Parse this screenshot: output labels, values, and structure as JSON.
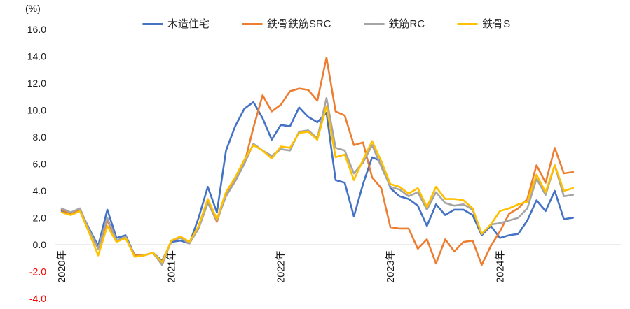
{
  "chart": {
    "unit_label": "(%)",
    "legend": [
      {
        "label": "木造住宅",
        "color": "#4472C4"
      },
      {
        "label": "鉄骨鉄筋SRC",
        "color": "#ED7D31"
      },
      {
        "label": "鉄筋RC",
        "color": "#A5A5A5"
      },
      {
        "label": "鉄骨S",
        "color": "#FFC000"
      }
    ],
    "y_axis": {
      "ticks": [
        {
          "label": "16.0",
          "value": 16
        },
        {
          "label": "14.0",
          "value": 14
        },
        {
          "label": "12.0",
          "value": 12
        },
        {
          "label": "10.0",
          "value": 10
        },
        {
          "label": "8.0",
          "value": 8
        },
        {
          "label": "6.0",
          "value": 6
        },
        {
          "label": "4.0",
          "value": 4
        },
        {
          "label": "2.0",
          "value": 2
        },
        {
          "label": "0.0",
          "value": 0
        },
        {
          "label": "-2.0",
          "value": -2
        },
        {
          "label": "-4.0",
          "value": -4
        }
      ],
      "tick_color": "#1a1a1a",
      "negative_tick_color": "#FF0000"
    },
    "x_axis": {
      "year_ticks": [
        {
          "label": "2020年",
          "month_index": 0
        },
        {
          "label": "2021年",
          "month_index": 12
        },
        {
          "label": "2022年",
          "month_index": 24
        },
        {
          "label": "2023年",
          "month_index": 36
        },
        {
          "label": "2024年",
          "month_index": 48
        }
      ],
      "tick_color": "#1a1a1a"
    },
    "zero_line_color": "#D9D9D9"
  },
  "chart_data": {
    "type": "line",
    "title": "",
    "xlabel": "",
    "ylabel": "(%)",
    "ylim": [
      -4,
      16
    ],
    "grid": "zero-line-only",
    "legend_position": "top",
    "x": [
      "2020-01",
      "2020-02",
      "2020-03",
      "2020-04",
      "2020-05",
      "2020-06",
      "2020-07",
      "2020-08",
      "2020-09",
      "2020-10",
      "2020-11",
      "2020-12",
      "2021-01",
      "2021-02",
      "2021-03",
      "2021-04",
      "2021-05",
      "2021-06",
      "2021-07",
      "2021-08",
      "2021-09",
      "2021-10",
      "2021-11",
      "2021-12",
      "2022-01",
      "2022-02",
      "2022-03",
      "2022-04",
      "2022-05",
      "2022-06",
      "2022-07",
      "2022-08",
      "2022-09",
      "2022-10",
      "2022-11",
      "2022-12",
      "2023-01",
      "2023-02",
      "2023-03",
      "2023-04",
      "2023-05",
      "2023-06",
      "2023-07",
      "2023-08",
      "2023-09",
      "2023-10",
      "2023-11",
      "2023-12",
      "2024-01",
      "2024-02",
      "2024-03",
      "2024-04",
      "2024-05",
      "2024-06",
      "2024-07",
      "2024-08",
      "2024-09"
    ],
    "series": [
      {
        "name": "木造住宅",
        "color": "#4472C4",
        "values": [
          2.5,
          2.4,
          2.6,
          1.2,
          -0.1,
          2.6,
          0.5,
          0.7,
          -0.8,
          -0.8,
          -0.6,
          -1.2,
          0.2,
          0.3,
          0.1,
          2.0,
          4.3,
          2.4,
          7.0,
          8.8,
          10.1,
          10.6,
          9.4,
          7.8,
          8.9,
          8.8,
          10.2,
          9.5,
          9.1,
          9.8,
          4.8,
          4.6,
          2.1,
          4.5,
          6.5,
          6.2,
          4.2,
          3.6,
          3.4,
          2.9,
          1.4,
          3.0,
          2.2,
          2.6,
          2.6,
          2.2,
          0.7,
          1.4,
          0.5,
          0.7,
          0.8,
          1.8,
          3.3,
          2.5,
          4.0,
          1.9,
          2.0
        ]
      },
      {
        "name": "鉄骨鉄筋SRC",
        "color": "#ED7D31",
        "values": [
          2.6,
          2.3,
          2.6,
          1.0,
          -0.3,
          1.8,
          0.3,
          0.5,
          -0.8,
          -0.8,
          -0.6,
          -1.5,
          0.3,
          0.5,
          0.1,
          1.3,
          3.2,
          1.7,
          3.8,
          4.8,
          6.0,
          8.7,
          11.1,
          9.9,
          10.4,
          11.4,
          11.6,
          11.5,
          10.7,
          13.9,
          9.9,
          9.6,
          7.4,
          7.6,
          5.0,
          4.2,
          1.3,
          1.2,
          1.2,
          -0.3,
          0.4,
          -1.4,
          0.4,
          -0.5,
          0.2,
          0.3,
          -1.5,
          -0.1,
          1.0,
          2.3,
          2.7,
          3.4,
          5.9,
          4.6,
          7.2,
          5.3,
          5.4
        ]
      },
      {
        "name": "鉄筋RC",
        "color": "#A5A5A5",
        "values": [
          2.7,
          2.4,
          2.7,
          1.1,
          -0.3,
          2.0,
          0.3,
          0.6,
          -0.9,
          -0.8,
          -0.6,
          -1.5,
          0.3,
          0.5,
          0.1,
          1.2,
          3.1,
          1.8,
          3.6,
          4.7,
          6.0,
          7.5,
          7.0,
          6.6,
          7.1,
          7.0,
          8.4,
          8.5,
          7.9,
          10.9,
          7.2,
          7.0,
          5.3,
          6.1,
          7.4,
          5.8,
          4.3,
          4.1,
          3.6,
          3.9,
          2.6,
          3.9,
          3.1,
          2.9,
          3.0,
          2.6,
          0.8,
          1.5,
          1.6,
          1.8,
          2.0,
          2.7,
          4.9,
          3.7,
          5.9,
          3.6,
          3.7
        ]
      },
      {
        "name": "鉄骨S",
        "color": "#FFC000",
        "values": [
          2.4,
          2.2,
          2.5,
          0.9,
          -0.8,
          1.4,
          0.2,
          0.5,
          -0.9,
          -0.8,
          -0.6,
          -1.3,
          0.3,
          0.6,
          0.2,
          1.4,
          3.4,
          1.9,
          3.9,
          5.0,
          6.3,
          7.4,
          7.0,
          6.4,
          7.3,
          7.2,
          8.3,
          8.4,
          7.8,
          10.3,
          6.5,
          6.7,
          4.8,
          6.3,
          7.7,
          6.2,
          4.5,
          4.3,
          3.8,
          4.2,
          2.8,
          4.3,
          3.4,
          3.4,
          3.3,
          2.7,
          0.8,
          1.5,
          2.5,
          2.7,
          3.0,
          3.2,
          5.2,
          3.9,
          5.9,
          4.0,
          4.2
        ]
      }
    ]
  }
}
